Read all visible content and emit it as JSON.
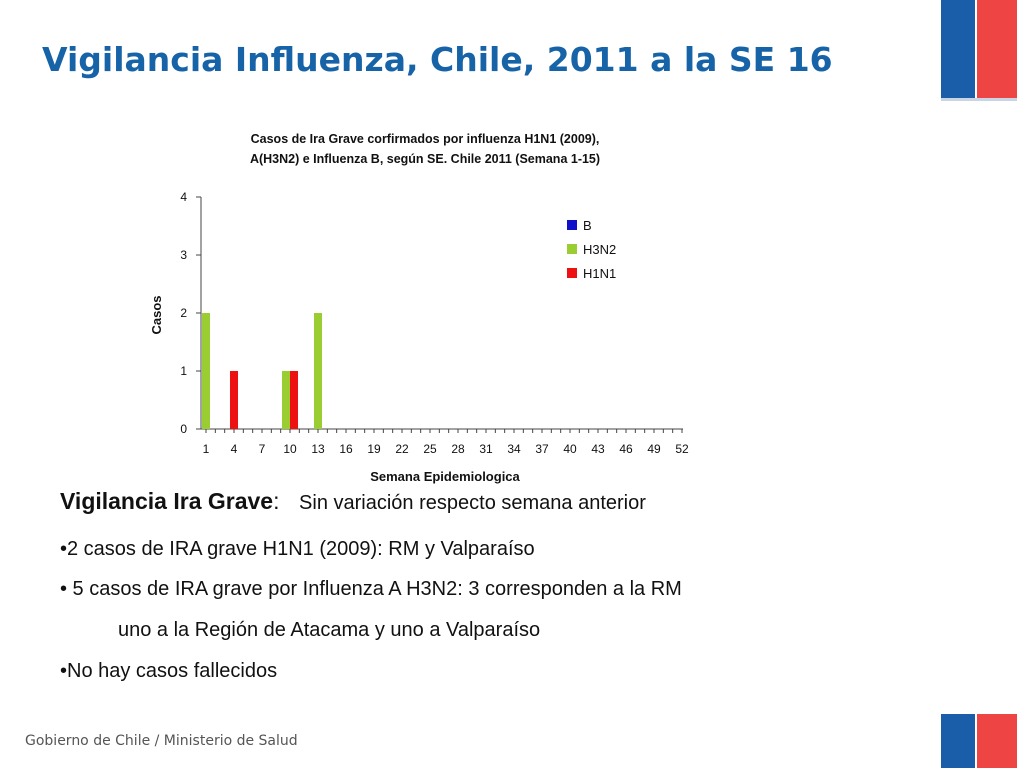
{
  "slide": {
    "title": "Vigilancia Influenza, Chile, 2011 a la SE 16",
    "footer": "Gobierno de Chile / Ministerio de Salud"
  },
  "chart_data": {
    "type": "bar",
    "title_line1": "Casos de Ira Grave corfirmados por influenza H1N1 (2009),",
    "title_line2": "A(H3N2) e Influenza B, según SE. Chile 2011 (Semana 1-15)",
    "xlabel": "Semana Epidemiologica",
    "ylabel": "Casos",
    "ylim": [
      0,
      4
    ],
    "yticks": [
      0,
      1,
      2,
      3,
      4
    ],
    "x_range": [
      1,
      52
    ],
    "xticks": [
      1,
      4,
      7,
      10,
      13,
      16,
      19,
      22,
      25,
      28,
      31,
      34,
      37,
      40,
      43,
      46,
      49,
      52
    ],
    "grid": false,
    "legend_position": "top-right",
    "series": [
      {
        "name": "B",
        "color": "#1010c8",
        "points": []
      },
      {
        "name": "H3N2",
        "color": "#9acd32",
        "points": [
          {
            "x": 1,
            "y": 2
          },
          {
            "x": 10,
            "y": 1
          },
          {
            "x": 13,
            "y": 2
          }
        ]
      },
      {
        "name": "H1N1",
        "color": "#ee1111",
        "points": [
          {
            "x": 4,
            "y": 1
          },
          {
            "x": 10,
            "y": 1
          }
        ]
      }
    ]
  },
  "summary": {
    "heading_label": "Vigilancia Ira Grave",
    "heading_sep": ":",
    "heading_text": "Sin variación respecto semana anterior",
    "bullet1": "•2 casos de IRA grave H1N1 (2009): RM y Valparaíso",
    "bullet2": "• 5 casos de IRA grave por Influenza A H3N2:  3 corresponden a la RM",
    "bullet2_cont": "uno a la Región de Atacama y uno a Valparaíso",
    "bullet3": "•No hay casos fallecidos"
  },
  "colors": {
    "title": "#1763a8",
    "flag_blue": "#1a5da8",
    "flag_red": "#ef4444"
  }
}
